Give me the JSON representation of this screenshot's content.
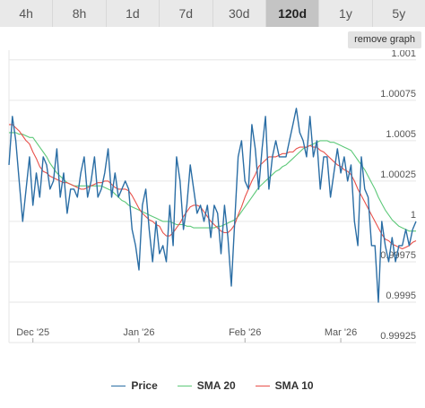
{
  "tabs": [
    {
      "label": "4h"
    },
    {
      "label": "8h"
    },
    {
      "label": "1d"
    },
    {
      "label": "7d"
    },
    {
      "label": "30d"
    },
    {
      "label": "120d",
      "active": true
    },
    {
      "label": "1y"
    },
    {
      "label": "5y"
    }
  ],
  "remove_graph_label": "remove graph",
  "chart_data": {
    "type": "line",
    "title": "",
    "xlabel": "",
    "ylabel": "",
    "ylim": [
      0.99925,
      1.00106
    ],
    "y_ticks": [
      {
        "value": 0.99925,
        "label": "0.99925"
      },
      {
        "value": 0.9995,
        "label": "0.9995"
      },
      {
        "value": 0.99975,
        "label": "0.99975"
      },
      {
        "value": 1.0,
        "label": "1"
      },
      {
        "value": 1.00025,
        "label": "1.00025"
      },
      {
        "value": 1.0005,
        "label": "1.0005"
      },
      {
        "value": 1.00075,
        "label": "1.00075"
      },
      {
        "value": 1.001,
        "label": "1.001"
      }
    ],
    "x_ticks": [
      {
        "label": "Dec '25",
        "index": 7
      },
      {
        "label": "Jan '26",
        "index": 38
      },
      {
        "label": "Feb '26",
        "index": 69
      },
      {
        "label": "Mar '26",
        "index": 97
      }
    ],
    "colors": {
      "Price": "#2b6ea5",
      "SMA 20": "#5ec97a",
      "SMA 10": "#e8504a"
    },
    "grid": true,
    "legend": "bottom",
    "series": [
      {
        "name": "Price",
        "values": [
          1.00035,
          1.00065,
          1.0005,
          1.00025,
          1.0,
          1.0002,
          1.0004,
          1.0001,
          1.0003,
          1.00015,
          1.0004,
          1.00035,
          1.0002,
          1.00025,
          1.00045,
          1.00015,
          1.0003,
          1.00005,
          1.0002,
          1.0002,
          1.00015,
          1.0003,
          1.0004,
          1.00015,
          1.00025,
          1.0004,
          1.00015,
          1.0002,
          1.0003,
          1.00045,
          1.00015,
          1.0003,
          1.00015,
          1.0002,
          1.00025,
          1.0002,
          0.99995,
          0.99985,
          0.9997,
          1.0001,
          1.0002,
          0.99995,
          0.99975,
          1.0,
          0.9998,
          0.99985,
          0.99975,
          1.0001,
          0.99985,
          1.0004,
          1.00025,
          0.99995,
          1.0001,
          1.00035,
          1.0002,
          1.00005,
          1.0001,
          1.0,
          1.0001,
          0.9999,
          1.0001,
          1.00005,
          0.9998,
          1.0001,
          0.9999,
          0.9996,
          1.0,
          1.0004,
          1.0005,
          1.00025,
          1.0002,
          1.0006,
          1.00045,
          1.0002,
          1.00045,
          1.00065,
          1.0002,
          1.0004,
          1.0005,
          1.0004,
          1.0004,
          1.0004,
          1.0005,
          1.0006,
          1.0007,
          1.00055,
          1.0005,
          1.0004,
          1.00065,
          1.0004,
          1.0005,
          1.0002,
          1.0004,
          1.0004,
          1.00015,
          1.0003,
          1.00045,
          1.0003,
          1.0004,
          1.00025,
          1.00035,
          1.0,
          0.99985,
          1.0004,
          1.0002,
          1.00015,
          0.99985,
          0.99985,
          0.9995,
          1.0,
          0.99985,
          0.99975,
          0.9999,
          0.99975,
          0.99985,
          0.99985,
          0.99995,
          0.99985,
          0.99995,
          1.0
        ]
      },
      {
        "name": "SMA 20",
        "values": [
          1.00055,
          1.00055,
          1.00055,
          1.00054,
          1.00054,
          1.00053,
          1.00052,
          1.00052,
          1.00049,
          1.00046,
          1.00043,
          1.0004,
          1.00036,
          1.00033,
          1.0003,
          1.00028,
          1.00026,
          1.00024,
          1.00023,
          1.00022,
          1.00022,
          1.00022,
          1.00022,
          1.00022,
          1.00022,
          1.00022,
          1.00022,
          1.00022,
          1.00021,
          1.0002,
          1.00019,
          1.00017,
          1.00015,
          1.00013,
          1.00012,
          1.0001,
          1.00009,
          1.00008,
          1.00007,
          1.00006,
          1.00005,
          1.00004,
          1.00003,
          1.00002,
          1.00001,
          1.0,
          1.0,
          1.0,
          0.99999,
          0.99998,
          0.99998,
          0.99998,
          0.99997,
          0.99997,
          0.99996,
          0.99996,
          0.99996,
          0.99996,
          0.99996,
          0.99996,
          0.99996,
          0.99997,
          0.99997,
          0.99998,
          0.99999,
          1.0,
          1.00001,
          1.00003,
          1.00006,
          1.00009,
          1.00012,
          1.00015,
          1.00018,
          1.00021,
          1.00023,
          1.00025,
          1.00027,
          1.00029,
          1.00031,
          1.00032,
          1.00034,
          1.00035,
          1.00037,
          1.00039,
          1.00041,
          1.00043,
          1.00045,
          1.00046,
          1.00047,
          1.00048,
          1.00049,
          1.0005,
          1.0005,
          1.0005,
          1.00049,
          1.00049,
          1.00048,
          1.00047,
          1.00046,
          1.00045,
          1.00044,
          1.00041,
          1.00038,
          1.00035,
          1.00032,
          1.00028,
          1.00024,
          1.0002,
          1.00015,
          1.00011,
          1.00007,
          1.00004,
          1.00001,
          0.99999,
          0.99997,
          0.99996,
          0.99995,
          0.99994,
          0.99994,
          0.99994
        ]
      },
      {
        "name": "SMA 10",
        "values": [
          1.0006,
          1.0006,
          1.00058,
          1.00056,
          1.00053,
          1.0005,
          1.00048,
          1.00043,
          1.00039,
          1.00034,
          1.00031,
          1.0003,
          1.00028,
          1.00027,
          1.00026,
          1.00025,
          1.00024,
          1.00024,
          1.00023,
          1.00022,
          1.00021,
          1.0002,
          1.0002,
          1.00021,
          1.00022,
          1.00023,
          1.00024,
          1.00024,
          1.00025,
          1.00025,
          1.00023,
          1.00021,
          1.0002,
          1.0002,
          1.0002,
          1.00019,
          1.00016,
          1.00012,
          1.00008,
          1.00005,
          1.00003,
          1.00001,
          1.0,
          0.99998,
          0.99997,
          0.99993,
          0.99991,
          0.99991,
          0.99993,
          0.99996,
          0.99999,
          1.00003,
          1.00006,
          1.00009,
          1.0001,
          1.0001,
          1.00009,
          1.00006,
          1.00003,
          1.0,
          0.99998,
          0.99996,
          0.99994,
          0.99993,
          0.99993,
          0.99995,
          0.99998,
          1.00004,
          1.00009,
          1.00015,
          1.0002,
          1.00025,
          1.00029,
          1.00034,
          1.00036,
          1.00038,
          1.0004,
          1.0004,
          1.0004,
          1.00041,
          1.00042,
          1.00042,
          1.00043,
          1.00043,
          1.00045,
          1.00046,
          1.00046,
          1.00046,
          1.00047,
          1.00046,
          1.00046,
          1.00044,
          1.00043,
          1.00041,
          1.00039,
          1.00037,
          1.00035,
          1.00034,
          1.00032,
          1.00031,
          1.00029,
          1.00025,
          1.0002,
          1.00016,
          1.00012,
          1.00008,
          1.00004,
          1.0,
          0.99996,
          0.99992,
          0.99989,
          0.99988,
          0.99986,
          0.99985,
          0.99984,
          0.99983,
          0.99984,
          0.99985,
          0.99987,
          0.99988
        ]
      }
    ]
  }
}
